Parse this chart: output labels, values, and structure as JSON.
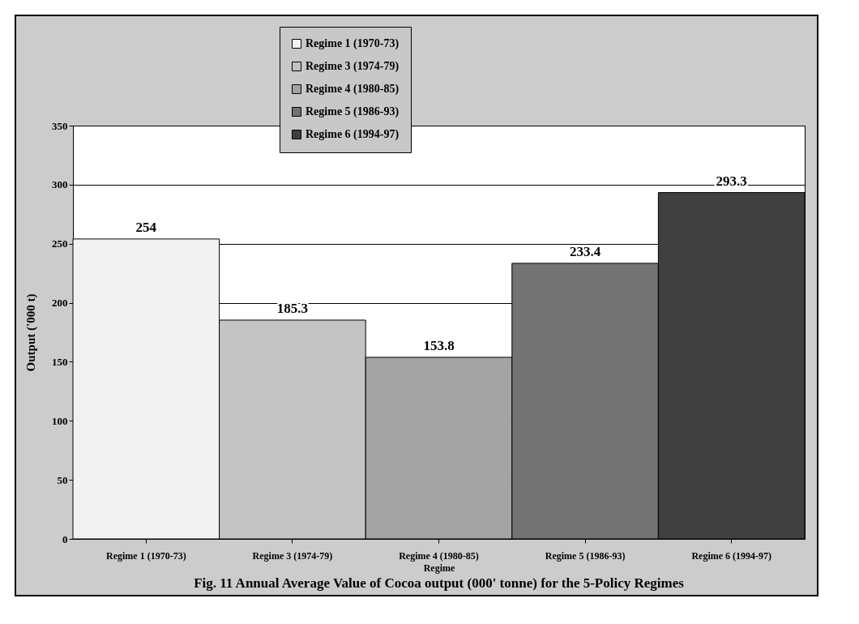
{
  "chart_data": {
    "type": "bar",
    "title": "Fig. 11 Annual Average Value of Cocoa output (000' tonne) for the 5-Policy Regimes",
    "xlabel": "Regime",
    "ylabel": "Output ('000 t)",
    "categories": [
      "Regime 1 (1970-73)",
      "Regime 3 (1974-79)",
      "Regime 4 (1980-85)",
      "Regime 5 (1986-93)",
      "Regime 6 (1994-97)"
    ],
    "stacked": true,
    "series": [
      {
        "name": "Regime 1 (1970-73)",
        "color": "#f2f2f2",
        "values": [
          254,
          null,
          null,
          null,
          null
        ]
      },
      {
        "name": "Regime 3 (1974-79)",
        "color": "#c4c4c4",
        "values": [
          null,
          185.3,
          null,
          null,
          null
        ]
      },
      {
        "name": "Regime 4 (1980-85)",
        "color": "#a3a3a3",
        "values": [
          null,
          null,
          153.8,
          null,
          null
        ]
      },
      {
        "name": "Regime 5 (1986-93)",
        "color": "#737373",
        "values": [
          null,
          null,
          null,
          233.4,
          null
        ]
      },
      {
        "name": "Regime 6 (1994-97)",
        "color": "#404040",
        "values": [
          null,
          null,
          null,
          null,
          293.3
        ]
      }
    ],
    "ylim": [
      0,
      350
    ],
    "yticks": [
      0,
      50,
      100,
      150,
      200,
      250,
      300,
      350
    ],
    "grid": "y",
    "legend": "top",
    "data_labels": true
  }
}
